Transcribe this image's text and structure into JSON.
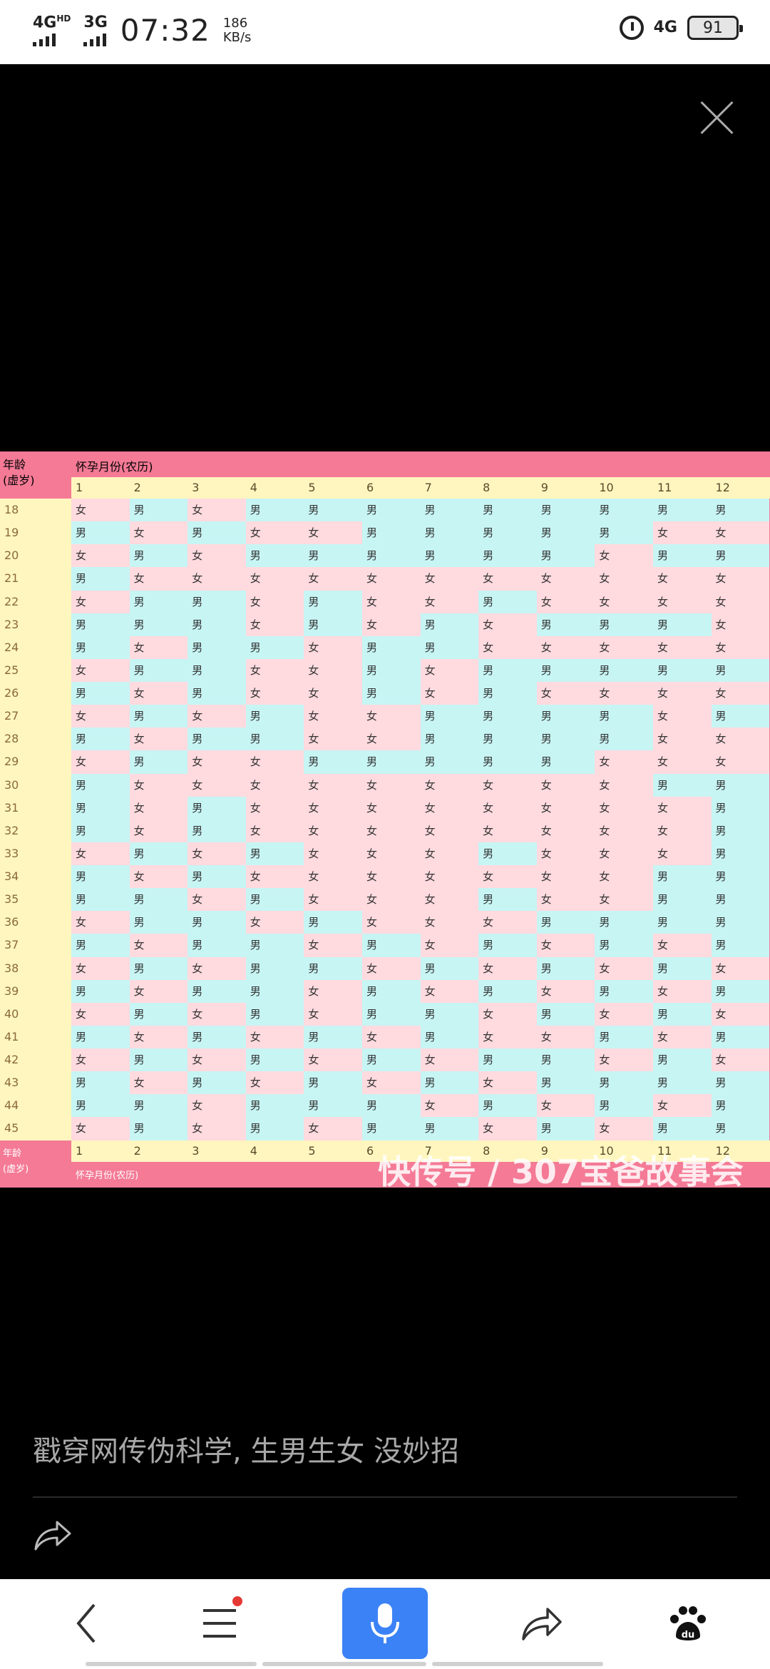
{
  "status_bar": {
    "net1": "4G",
    "net1_sup": "HD",
    "net2": "3G",
    "time": "07:32",
    "speed_value": "186",
    "speed_unit": "KB/s",
    "net_right": "4G",
    "battery": "91"
  },
  "chart": {
    "corner_top": [
      "年龄",
      "(虚岁)"
    ],
    "header_title": "怀孕月份(农历)",
    "months": [
      "1",
      "2",
      "3",
      "4",
      "5",
      "6",
      "7",
      "8",
      "9",
      "10",
      "11",
      "12"
    ],
    "ages": [
      "18",
      "19",
      "20",
      "21",
      "22",
      "23",
      "24",
      "25",
      "26",
      "27",
      "28",
      "29",
      "30",
      "31",
      "32",
      "33",
      "34",
      "35",
      "36",
      "37",
      "38",
      "39",
      "40",
      "41",
      "42",
      "43",
      "44",
      "45"
    ],
    "rows": [
      [
        "女",
        "男",
        "女",
        "男",
        "男",
        "男",
        "男",
        "男",
        "男",
        "男",
        "男",
        "男"
      ],
      [
        "男",
        "女",
        "男",
        "女",
        "女",
        "男",
        "男",
        "男",
        "男",
        "男",
        "女",
        "女"
      ],
      [
        "女",
        "男",
        "女",
        "男",
        "男",
        "男",
        "男",
        "男",
        "男",
        "女",
        "男",
        "男"
      ],
      [
        "男",
        "女",
        "女",
        "女",
        "女",
        "女",
        "女",
        "女",
        "女",
        "女",
        "女",
        "女"
      ],
      [
        "女",
        "男",
        "男",
        "女",
        "男",
        "女",
        "女",
        "男",
        "女",
        "女",
        "女",
        "女"
      ],
      [
        "男",
        "男",
        "男",
        "女",
        "男",
        "女",
        "男",
        "女",
        "男",
        "男",
        "男",
        "女"
      ],
      [
        "男",
        "女",
        "男",
        "男",
        "女",
        "男",
        "男",
        "女",
        "女",
        "女",
        "女",
        "女"
      ],
      [
        "女",
        "男",
        "男",
        "女",
        "女",
        "男",
        "女",
        "男",
        "男",
        "男",
        "男",
        "男"
      ],
      [
        "男",
        "女",
        "男",
        "女",
        "女",
        "男",
        "女",
        "男",
        "女",
        "女",
        "女",
        "女"
      ],
      [
        "女",
        "男",
        "女",
        "男",
        "女",
        "女",
        "男",
        "男",
        "男",
        "男",
        "女",
        "男"
      ],
      [
        "男",
        "女",
        "男",
        "男",
        "女",
        "女",
        "男",
        "男",
        "男",
        "男",
        "女",
        "女"
      ],
      [
        "女",
        "男",
        "女",
        "女",
        "男",
        "男",
        "男",
        "男",
        "男",
        "女",
        "女",
        "女"
      ],
      [
        "男",
        "女",
        "女",
        "女",
        "女",
        "女",
        "女",
        "女",
        "女",
        "女",
        "男",
        "男"
      ],
      [
        "男",
        "女",
        "男",
        "女",
        "女",
        "女",
        "女",
        "女",
        "女",
        "女",
        "女",
        "男"
      ],
      [
        "男",
        "女",
        "男",
        "女",
        "女",
        "女",
        "女",
        "女",
        "女",
        "女",
        "女",
        "男"
      ],
      [
        "女",
        "男",
        "女",
        "男",
        "女",
        "女",
        "女",
        "男",
        "女",
        "女",
        "女",
        "男"
      ],
      [
        "男",
        "女",
        "男",
        "女",
        "女",
        "女",
        "女",
        "女",
        "女",
        "女",
        "男",
        "男"
      ],
      [
        "男",
        "男",
        "女",
        "男",
        "女",
        "女",
        "女",
        "男",
        "女",
        "女",
        "男",
        "男"
      ],
      [
        "女",
        "男",
        "男",
        "女",
        "男",
        "女",
        "女",
        "女",
        "男",
        "男",
        "男",
        "男"
      ],
      [
        "男",
        "女",
        "男",
        "男",
        "女",
        "男",
        "女",
        "男",
        "女",
        "男",
        "女",
        "男"
      ],
      [
        "女",
        "男",
        "女",
        "男",
        "男",
        "女",
        "男",
        "女",
        "男",
        "女",
        "男",
        "女"
      ],
      [
        "男",
        "女",
        "男",
        "男",
        "女",
        "男",
        "女",
        "男",
        "女",
        "男",
        "女",
        "男"
      ],
      [
        "女",
        "男",
        "女",
        "男",
        "女",
        "男",
        "男",
        "女",
        "男",
        "女",
        "男",
        "女"
      ],
      [
        "男",
        "女",
        "男",
        "女",
        "男",
        "女",
        "男",
        "女",
        "女",
        "男",
        "女",
        "男"
      ],
      [
        "女",
        "男",
        "女",
        "男",
        "女",
        "男",
        "女",
        "男",
        "男",
        "女",
        "男",
        "女"
      ],
      [
        "男",
        "女",
        "男",
        "女",
        "男",
        "女",
        "男",
        "女",
        "男",
        "男",
        "男",
        "男"
      ],
      [
        "男",
        "男",
        "女",
        "男",
        "男",
        "男",
        "女",
        "男",
        "女",
        "男",
        "女",
        "男"
      ],
      [
        "女",
        "男",
        "女",
        "男",
        "女",
        "男",
        "男",
        "女",
        "男",
        "女",
        "男",
        "男"
      ]
    ],
    "watermark": "快传号 / 307宝爸故事会"
  },
  "caption": "戳穿网传伪科学, 生男生女 没妙招",
  "icons": {
    "close": "close-icon",
    "share": "share-icon",
    "back": "back-arrow-icon",
    "menu": "menu-icon",
    "mic": "microphone-icon",
    "forward": "share-forward-icon",
    "baidu": "baidu-paw-icon"
  },
  "colors": {
    "chart_header_pink": "#f47a96",
    "cell_boy_cyan": "#c7f5f4",
    "cell_girl_pink": "#ffdadf",
    "axis_yellow": "#fff6bf",
    "mic_blue": "#3b82f6"
  }
}
